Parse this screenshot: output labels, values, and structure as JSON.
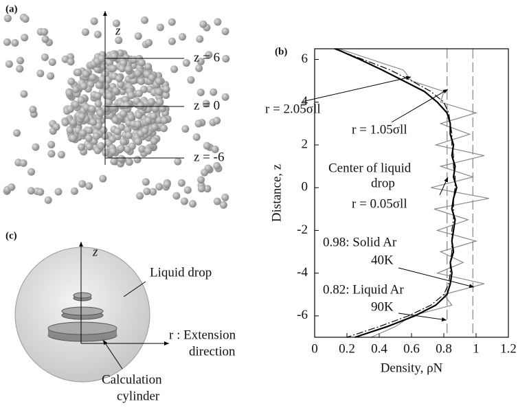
{
  "panel_a": {
    "label": "(a)",
    "axis_label": "z",
    "levels": [
      "z = 6",
      "z = 0",
      "z = -6"
    ]
  },
  "panel_c": {
    "label": "(c)",
    "axis_label": "z",
    "drop_label": "Liquid drop",
    "extension_label": [
      "r : Extension",
      "direction"
    ],
    "cylinder_label": [
      "Calculation",
      "cylinder"
    ]
  },
  "chart_data": {
    "type": "line",
    "panel_label": "(b)",
    "x_label": "Density, ρN",
    "y_label": "Distance, z",
    "y": [
      6.5,
      6,
      5.5,
      5,
      4.5,
      4,
      3.5,
      3,
      2.5,
      2,
      1.5,
      1,
      0.5,
      0,
      -0.5,
      -1,
      -1.5,
      -2,
      -2.5,
      -3,
      -3.5,
      -4,
      -4.5,
      -5,
      -5.5,
      -6,
      -6.5,
      -7
    ],
    "series": [
      {
        "name": "r = 0.05σll",
        "color": "#888888",
        "style": "solid",
        "width": 1.2,
        "values": [
          0.15,
          0.35,
          0.55,
          0.6,
          0.8,
          0.78,
          1.0,
          0.78,
          0.96,
          0.75,
          1.05,
          0.78,
          0.98,
          0.72,
          1.08,
          0.74,
          0.95,
          0.76,
          1.0,
          0.78,
          0.92,
          0.76,
          1.05,
          0.8,
          0.85,
          0.6,
          0.5,
          0.35
        ]
      },
      {
        "name": "r = 1.05σll",
        "color": "#000000",
        "style": "solid",
        "width": 2.2,
        "values": [
          0.13,
          0.28,
          0.42,
          0.55,
          0.68,
          0.76,
          0.82,
          0.84,
          0.84,
          0.86,
          0.85,
          0.87,
          0.86,
          0.88,
          0.86,
          0.85,
          0.87,
          0.86,
          0.85,
          0.86,
          0.84,
          0.85,
          0.84,
          0.82,
          0.75,
          0.62,
          0.45,
          0.25
        ]
      },
      {
        "name": "r = 2.05σll",
        "color": "#000000",
        "style": "dashdot",
        "width": 1.2,
        "values": [
          0.12,
          0.3,
          0.47,
          0.6,
          0.72,
          0.8,
          0.83,
          0.84,
          0.85,
          0.85,
          0.86,
          0.86,
          0.87,
          0.87,
          0.86,
          0.86,
          0.86,
          0.85,
          0.85,
          0.85,
          0.84,
          0.84,
          0.83,
          0.8,
          0.72,
          0.58,
          0.4,
          0.2
        ]
      }
    ],
    "reference_lines": [
      {
        "value": 0.98,
        "label": [
          "0.98: Solid Ar",
          "40K"
        ]
      },
      {
        "value": 0.82,
        "label": [
          "0.82: Liquid Ar",
          "90K"
        ]
      }
    ],
    "center_note": [
      "Center of liquid",
      "drop"
    ],
    "xlim": [
      0,
      1.2
    ],
    "xticks": [
      0,
      0.2,
      0.4,
      0.6,
      0.8,
      1,
      1.2
    ],
    "ylim": [
      -7,
      6.5
    ],
    "yticks": [
      -6,
      -4,
      -2,
      0,
      2,
      4,
      6
    ]
  }
}
